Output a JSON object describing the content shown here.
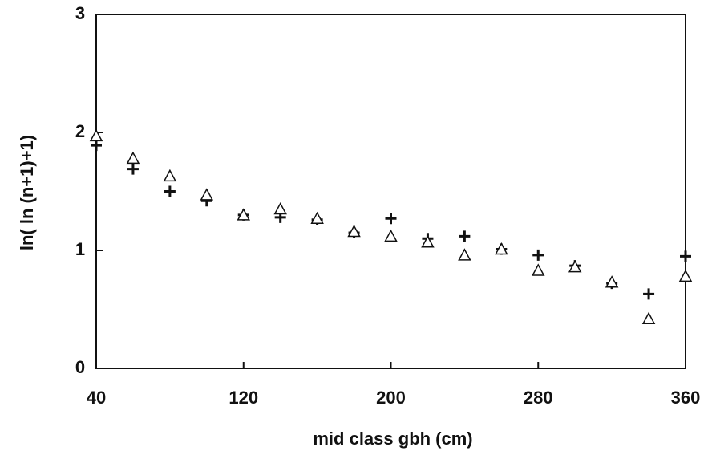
{
  "chart_data": {
    "type": "scatter",
    "x_label": "mid class gbh (cm)",
    "y_label": "ln( ln (n+1)+1)",
    "x": [
      40,
      60,
      80,
      100,
      120,
      140,
      160,
      180,
      200,
      220,
      240,
      260,
      280,
      300,
      320,
      340,
      360
    ],
    "series": [
      {
        "color": "#111111",
        "marker": "plus",
        "values": [
          1.89,
          1.69,
          1.5,
          1.42,
          1.3,
          1.28,
          1.26,
          1.15,
          1.27,
          1.1,
          1.12,
          1.01,
          0.96,
          0.87,
          0.72,
          0.63,
          0.95
        ]
      },
      {
        "color": "#111111",
        "marker": "triangle",
        "values": [
          1.97,
          1.78,
          1.63,
          1.47,
          1.3,
          1.35,
          1.27,
          1.16,
          1.12,
          1.07,
          0.96,
          1.01,
          0.83,
          0.86,
          0.73,
          0.42,
          0.78
        ]
      }
    ],
    "xlim": [
      40,
      360
    ],
    "xticks": [
      40,
      120,
      200,
      280,
      360
    ],
    "ylim": [
      0,
      3
    ],
    "yticks": [
      0,
      1,
      2,
      3
    ]
  }
}
